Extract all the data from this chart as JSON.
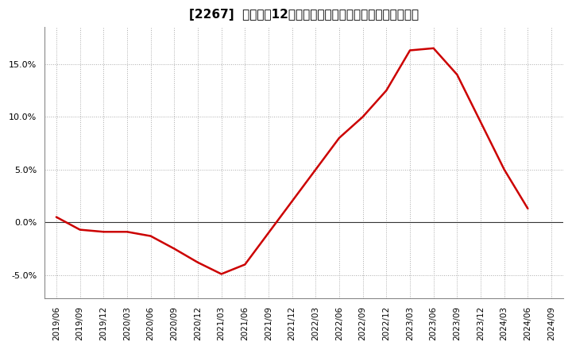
{
  "title": "[2267]  売上高の12か月移動合計の対前年同期増減率の推移",
  "line_color": "#cc0000",
  "background_color": "#ffffff",
  "plot_bg_color": "#ffffff",
  "grid_color": "#aaaaaa",
  "ylim": [
    -0.072,
    0.185
  ],
  "yticks": [
    -0.05,
    0.0,
    0.05,
    0.1,
    0.15
  ],
  "dates": [
    "2019/06",
    "2019/09",
    "2019/12",
    "2020/03",
    "2020/06",
    "2020/09",
    "2020/12",
    "2021/03",
    "2021/06",
    "2021/09",
    "2021/12",
    "2022/03",
    "2022/06",
    "2022/09",
    "2022/12",
    "2023/03",
    "2023/06",
    "2023/09",
    "2023/12",
    "2024/03",
    "2024/06",
    "2024/09"
  ],
  "values": [
    0.005,
    -0.007,
    -0.009,
    -0.009,
    -0.013,
    -0.025,
    -0.038,
    -0.049,
    -0.04,
    -0.01,
    0.02,
    0.05,
    0.08,
    0.1,
    0.125,
    0.163,
    0.165,
    0.14,
    0.095,
    0.05,
    0.013,
    null
  ],
  "title_fontsize": 11,
  "tick_fontsize": 8,
  "xtick_fontsize": 7.5
}
